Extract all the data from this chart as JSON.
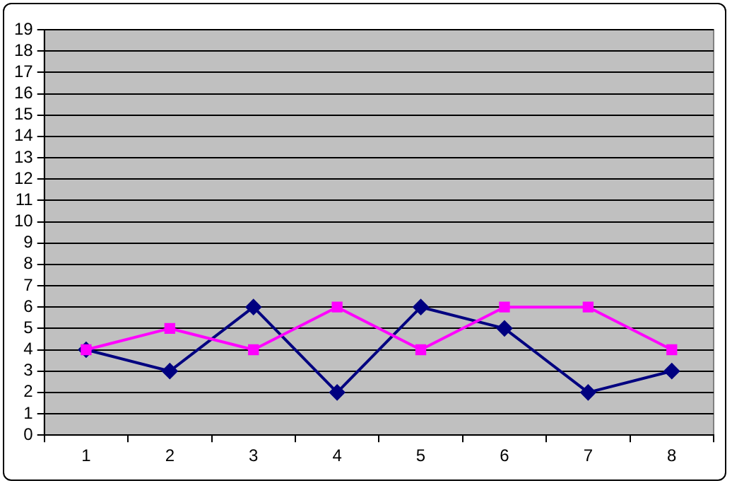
{
  "chart_data": {
    "type": "line",
    "categories": [
      "1",
      "2",
      "3",
      "4",
      "5",
      "6",
      "7",
      "8"
    ],
    "series": [
      {
        "color": "#000080",
        "values": [
          4,
          3,
          6,
          2,
          6,
          5,
          2,
          3
        ],
        "marker": "diamond"
      },
      {
        "color": "#ff00ff",
        "values": [
          4,
          5,
          4,
          6,
          4,
          6,
          6,
          4
        ],
        "marker": "square"
      }
    ],
    "ylim": [
      0,
      19
    ],
    "yticks": [
      0,
      1,
      2,
      3,
      4,
      5,
      6,
      7,
      8,
      9,
      10,
      11,
      12,
      13,
      14,
      15,
      16,
      17,
      18,
      19
    ],
    "grid": "y",
    "legend": false,
    "line_style": "solid"
  }
}
